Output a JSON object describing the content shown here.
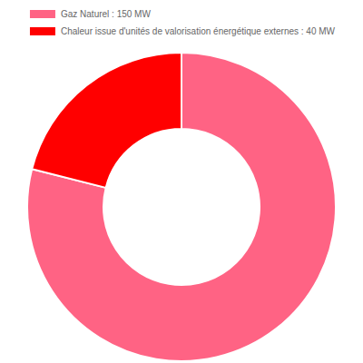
{
  "chart_data": {
    "type": "pie",
    "categories": [
      "Gaz Naturel : 150 MW",
      "Chaleur issue d'unités de valorisation énergétique externes : 40 MW"
    ],
    "values": [
      150,
      40
    ],
    "colors": [
      "#ff6384",
      "#ff0000"
    ],
    "legend": "top"
  }
}
